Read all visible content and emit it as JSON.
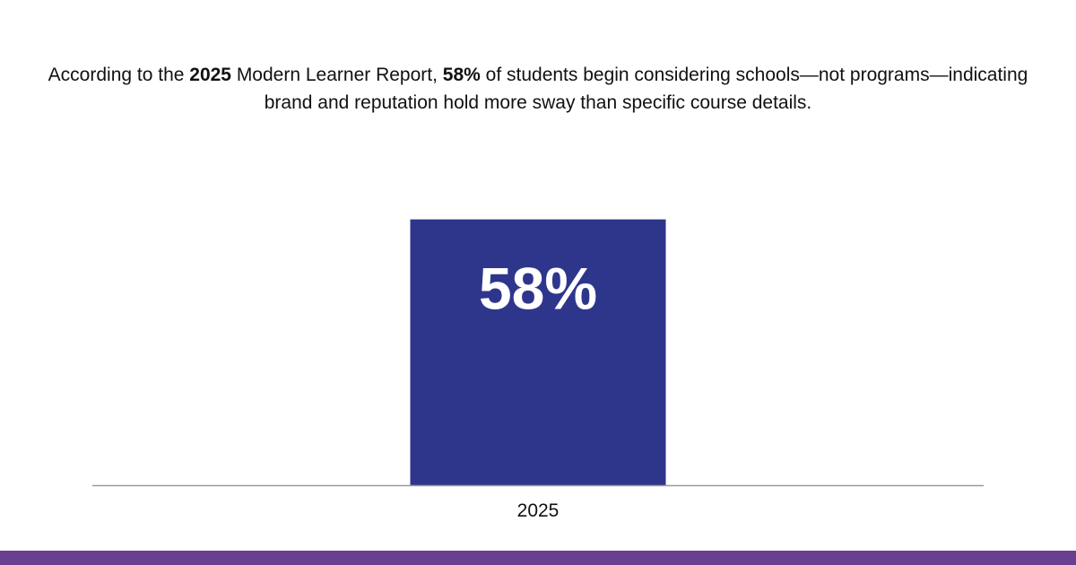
{
  "headline": {
    "part1": "According to the ",
    "year_bold": "2025",
    "part2": " Modern Learner Report, ",
    "pct_bold": "58%",
    "part3": " of students begin considering schools—not programs—indicating brand and reputation hold more sway than specific course details."
  },
  "colors": {
    "bar": "#2e368c",
    "axis": "#9a9a9a",
    "bottom_bar": "#6b3f8f",
    "bar_label": "#ffffff"
  },
  "chart_data": {
    "type": "bar",
    "categories": [
      "2025"
    ],
    "values": [
      58
    ],
    "data_labels": [
      "58%"
    ],
    "title": "",
    "xlabel": "",
    "ylabel": "",
    "ylim": [
      0,
      100
    ],
    "grid": false,
    "legend": "none"
  }
}
